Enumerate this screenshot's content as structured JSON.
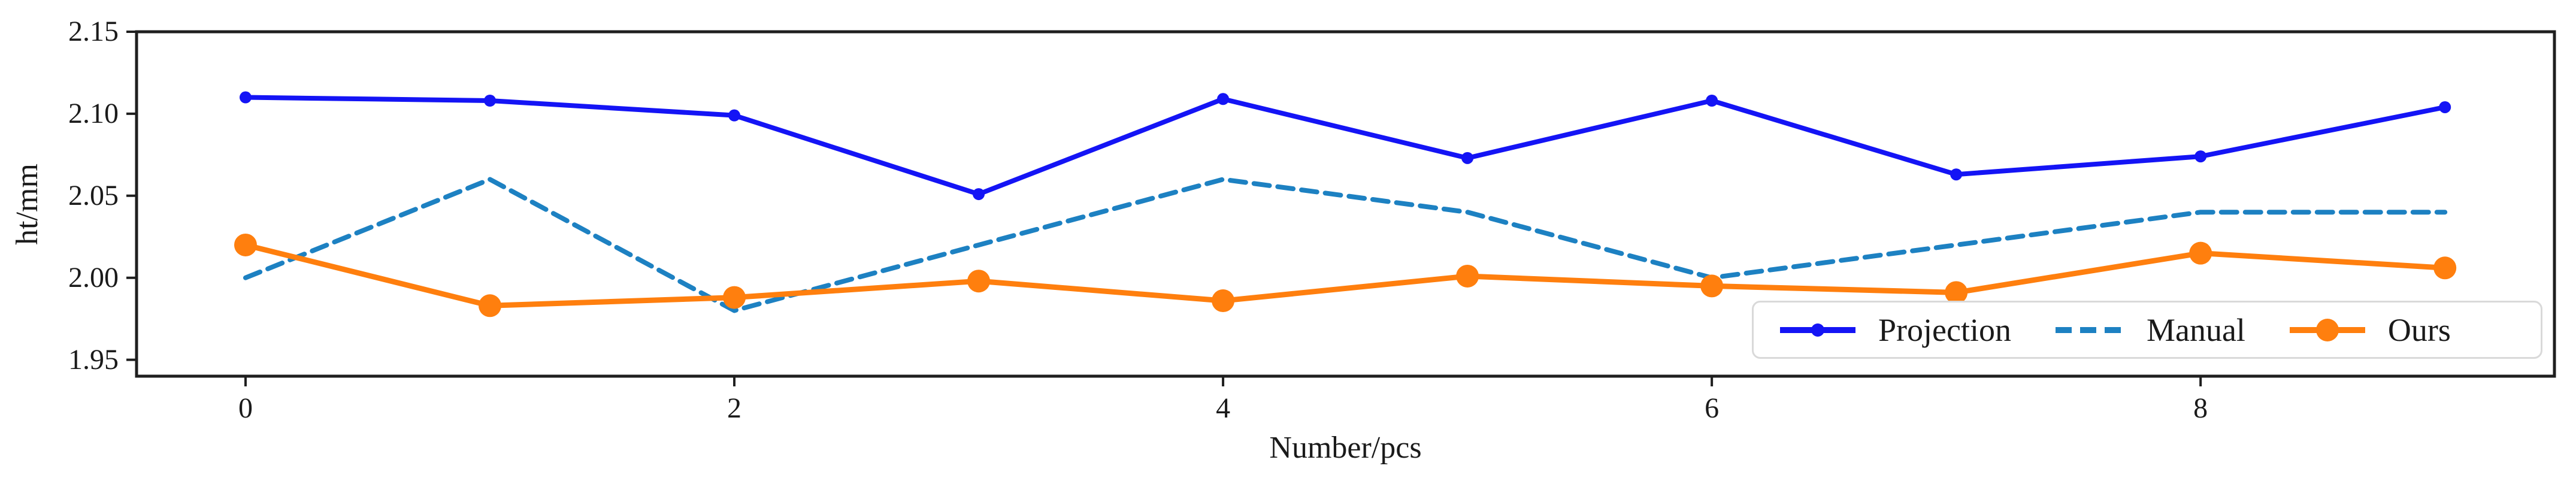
{
  "figure": {
    "background": "#ffffff",
    "axis_color": "#1f1f1f",
    "text_color": "#1a1a1a",
    "legend_border_color": "#d9d9d9"
  },
  "chart_data": {
    "type": "line",
    "title": "",
    "xlabel": "Number/pcs",
    "ylabel": "ht/mm",
    "x": [
      0,
      1,
      2,
      3,
      4,
      5,
      6,
      7,
      8,
      9
    ],
    "xlim": [
      -0.446,
      9.448
    ],
    "ylim": [
      1.94,
      2.15
    ],
    "grid": false,
    "xticks": {
      "values": [
        0,
        2,
        4,
        6,
        8
      ],
      "labels": [
        "0",
        "2",
        "4",
        "6",
        "8"
      ]
    },
    "yticks": {
      "values": [
        2.15,
        2.1,
        2.05,
        2.0,
        1.95
      ],
      "labels": [
        "2.15",
        "2.10",
        "2.05",
        "2.00",
        "1.95"
      ]
    },
    "legend": {
      "position": "lower-right",
      "orientation": "horizontal"
    },
    "series": [
      {
        "name": "Projection",
        "color": "#1414f5",
        "style": "solid",
        "marker": "dot-small",
        "width": 8,
        "values": [
          2.11,
          2.108,
          2.099,
          2.051,
          2.109,
          2.073,
          2.108,
          2.063,
          2.074,
          2.104
        ]
      },
      {
        "name": "Manual",
        "color": "#1d81c2",
        "style": "dashed",
        "marker": "none",
        "width": 8,
        "values": [
          2.0,
          2.06,
          1.98,
          2.02,
          2.06,
          2.04,
          2.0,
          2.02,
          2.04,
          2.04
        ]
      },
      {
        "name": "Ours",
        "color": "#ff7f0e",
        "style": "solid",
        "marker": "dot-large",
        "width": 9,
        "values": [
          2.02,
          1.983,
          1.988,
          1.998,
          1.986,
          2.001,
          1.995,
          1.991,
          2.015,
          2.006
        ]
      }
    ]
  }
}
